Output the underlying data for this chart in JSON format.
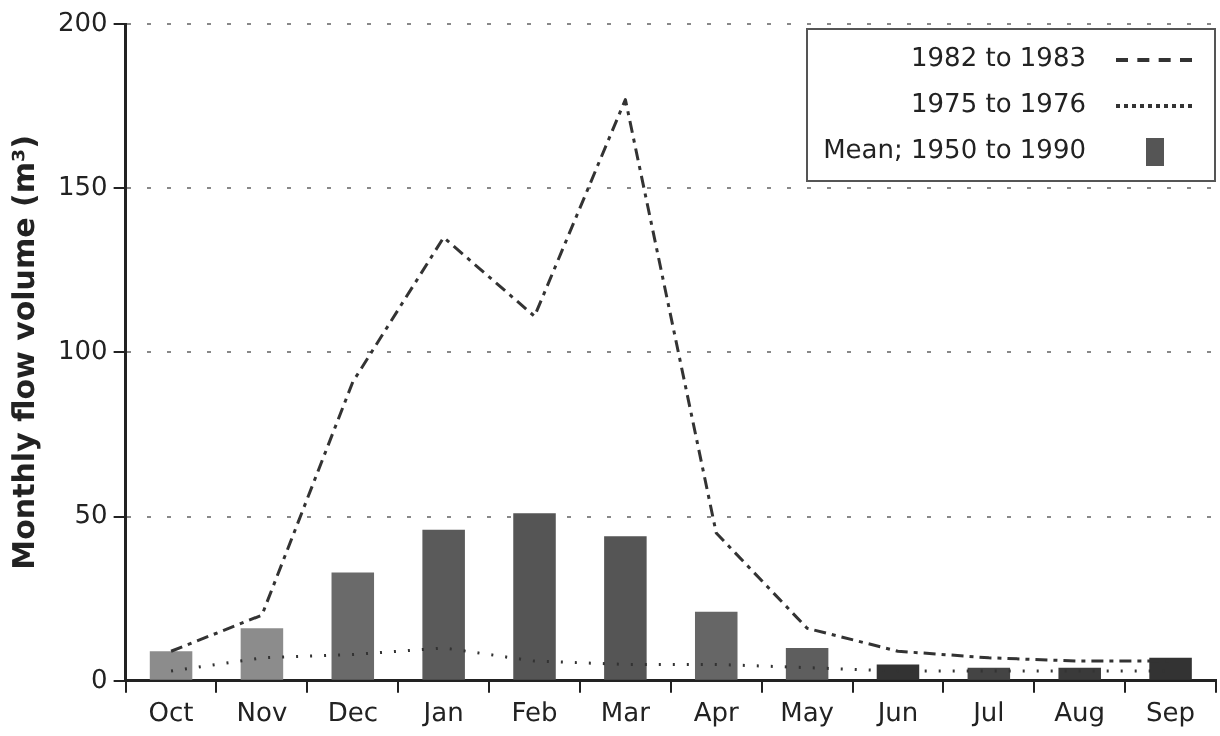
{
  "chart_data": {
    "type": "bar",
    "ylabel": "Monthly flow volume (m³)",
    "categories": [
      "Oct",
      "Nov",
      "Dec",
      "Jan",
      "Feb",
      "Mar",
      "Apr",
      "May",
      "Jun",
      "Jul",
      "Aug",
      "Sep"
    ],
    "series": [
      {
        "name": "1982 to 1983",
        "type": "line",
        "color": "#333333",
        "line_style": "dashed",
        "values": [
          9,
          20,
          91,
          135,
          111,
          177,
          45,
          16,
          9,
          7,
          6,
          6
        ]
      },
      {
        "name": "1975 to 1976",
        "type": "line",
        "color": "#333333",
        "line_style": "dotted",
        "values": [
          3,
          7,
          8,
          10,
          6,
          5,
          5,
          4,
          3,
          3,
          3,
          3
        ]
      },
      {
        "name": "Mean; 1950 to 1990",
        "color": "#555555",
        "colors": [
          "#8c8c8c",
          "#8c8c8c",
          "#6a6a6a",
          "#5a5a5a",
          "#555555",
          "#555555",
          "#666666",
          "#5e5e5e",
          "#333333",
          "#444444",
          "#3a3a3a",
          "#333333"
        ],
        "values": [
          9,
          16,
          33,
          46,
          51,
          44,
          21,
          10,
          5,
          4,
          4,
          7
        ]
      }
    ],
    "ylim": [
      0,
      200
    ],
    "yticks": [
      0,
      50,
      100,
      150,
      200
    ],
    "grid": "y",
    "legend": "top right",
    "marker": "none"
  }
}
